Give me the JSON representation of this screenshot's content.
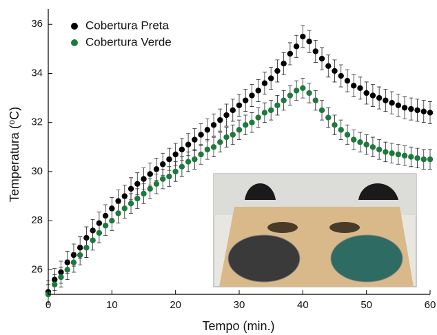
{
  "chart_data": {
    "type": "scatter",
    "x_label": "Tempo (min.)",
    "y_label": "Temperatura (⁰C)",
    "x": [
      0,
      1,
      2,
      3,
      4,
      5,
      6,
      7,
      8,
      9,
      10,
      11,
      12,
      13,
      14,
      15,
      16,
      17,
      18,
      19,
      20,
      21,
      22,
      23,
      24,
      25,
      26,
      27,
      28,
      29,
      30,
      31,
      32,
      33,
      34,
      35,
      36,
      37,
      38,
      39,
      40,
      41,
      42,
      43,
      44,
      45,
      46,
      47,
      48,
      49,
      50,
      51,
      52,
      53,
      54,
      55,
      56,
      57,
      58,
      59,
      60
    ],
    "series": [
      {
        "name": "Cobertura Preta",
        "color": "#000000",
        "error": 0.45,
        "values": [
          25.1,
          25.6,
          25.9,
          26.3,
          26.6,
          26.9,
          27.3,
          27.6,
          27.9,
          28.2,
          28.5,
          28.8,
          29.0,
          29.3,
          29.5,
          29.7,
          29.9,
          30.1,
          30.3,
          30.5,
          30.7,
          30.9,
          31.1,
          31.3,
          31.5,
          31.7,
          31.9,
          32.1,
          32.3,
          32.5,
          32.7,
          32.9,
          33.1,
          33.3,
          33.6,
          33.8,
          34.1,
          34.4,
          34.8,
          35.1,
          35.5,
          35.3,
          34.9,
          34.6,
          34.3,
          34.1,
          33.9,
          33.7,
          33.5,
          33.4,
          33.2,
          33.1,
          33.0,
          32.9,
          32.8,
          32.7,
          32.6,
          32.55,
          32.5,
          32.45,
          32.4
        ]
      },
      {
        "name": "Cobertura Verde",
        "color": "#1e7a3c",
        "error": 0.4,
        "values": [
          25.0,
          25.4,
          25.7,
          26.0,
          26.3,
          26.6,
          26.9,
          27.2,
          27.5,
          27.8,
          28.0,
          28.3,
          28.5,
          28.7,
          28.9,
          29.1,
          29.3,
          29.5,
          29.7,
          29.8,
          30.0,
          30.2,
          30.4,
          30.5,
          30.7,
          30.9,
          31.0,
          31.2,
          31.4,
          31.5,
          31.7,
          31.9,
          32.0,
          32.2,
          32.4,
          32.5,
          32.7,
          32.9,
          33.1,
          33.3,
          33.4,
          33.2,
          32.9,
          32.5,
          32.2,
          31.9,
          31.7,
          31.5,
          31.3,
          31.2,
          31.1,
          31.0,
          30.9,
          30.8,
          30.75,
          30.7,
          30.65,
          30.6,
          30.55,
          30.5,
          30.5
        ]
      }
    ],
    "xlim": [
      0,
      60
    ],
    "xticks": [
      0,
      10,
      20,
      30,
      40,
      50,
      60
    ],
    "ylim": [
      25,
      36.4
    ],
    "yticks": [
      26,
      28,
      30,
      32,
      34,
      36
    ],
    "legend": "upper left"
  }
}
